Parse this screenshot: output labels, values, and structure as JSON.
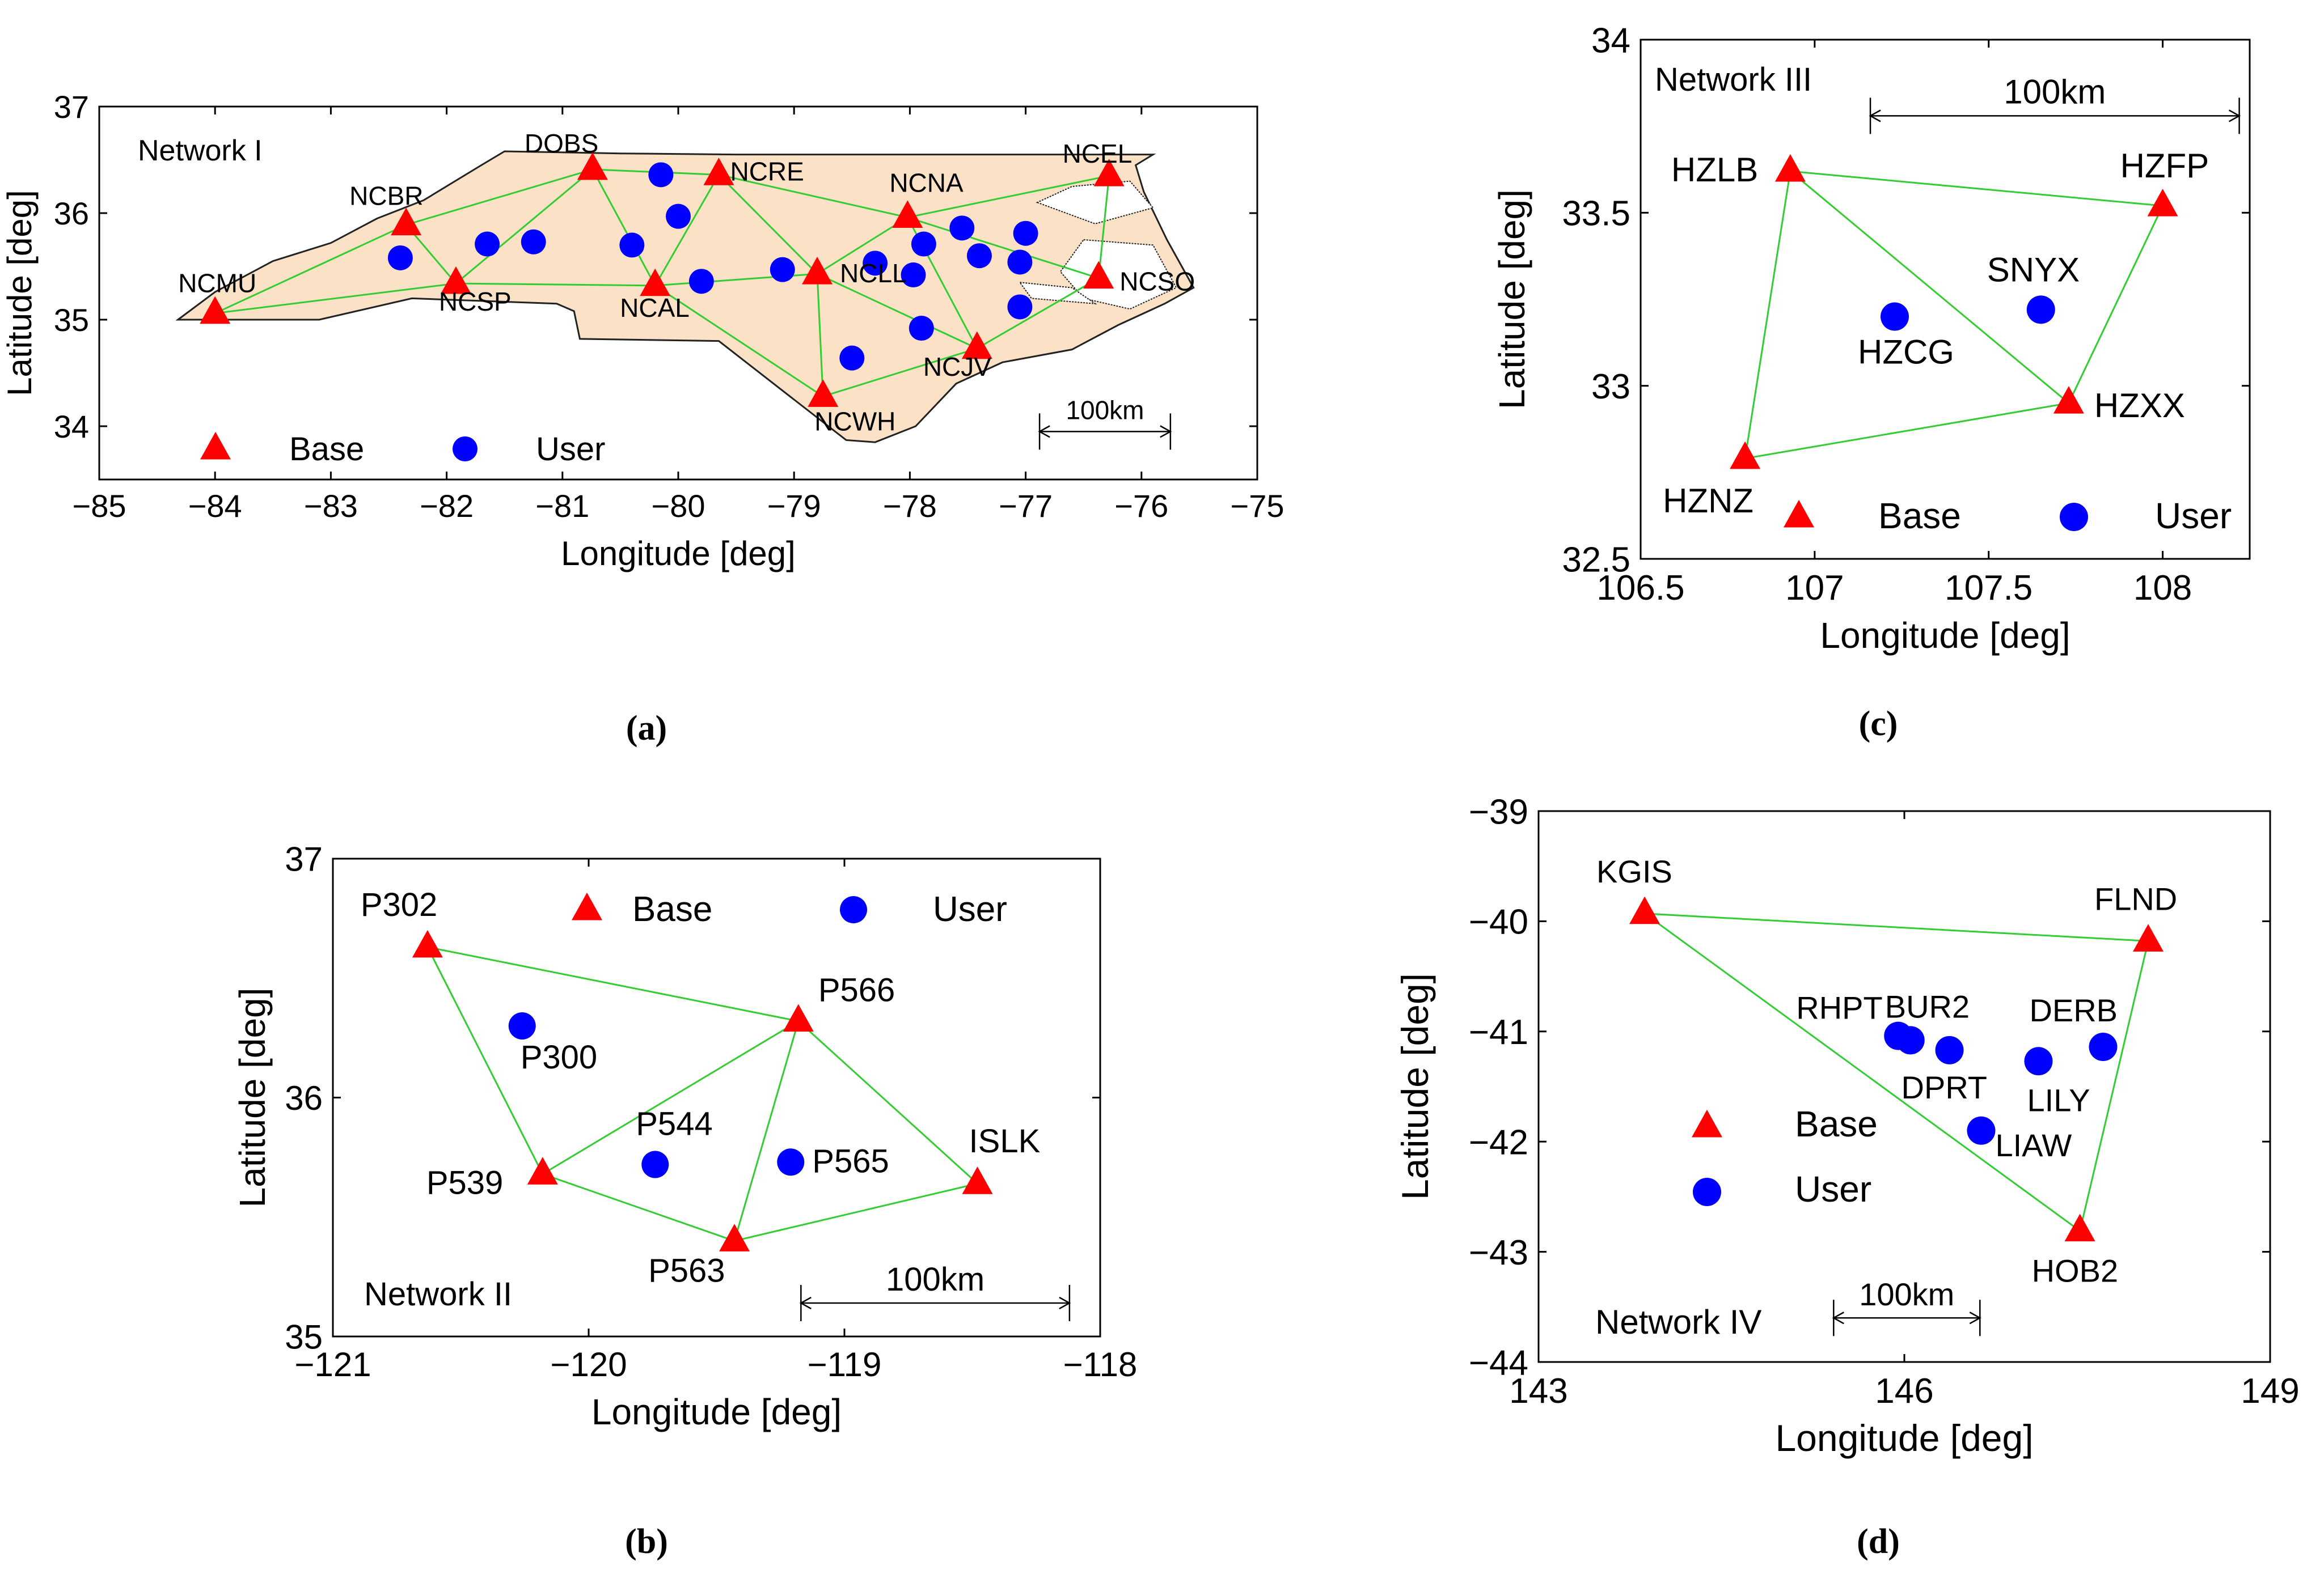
{
  "colors": {
    "base": "#ff0000",
    "user": "#0000ff",
    "link": "#33cc33",
    "land": "#fbe2c6",
    "coast": "#222222"
  },
  "chart_data": [
    {
      "id": "a",
      "type": "scatter",
      "caption": "(a)",
      "network_label": "Network I",
      "xlabel": "Longitude [deg]",
      "ylabel": "Latitude [deg]",
      "xlim": [
        -85,
        -75
      ],
      "ylim": [
        33.5,
        37
      ],
      "xticks": [
        -85,
        -84,
        -83,
        -82,
        -81,
        -80,
        -79,
        -78,
        -77,
        -76,
        -75
      ],
      "yticks": [
        34,
        35,
        36,
        37
      ],
      "legend": [
        {
          "marker": "triangle",
          "label": "Base"
        },
        {
          "marker": "circle",
          "label": "User"
        }
      ],
      "scalebar": {
        "label": "100km",
        "x_from": -76.88,
        "x_to": -75.75,
        "y": 33.95
      },
      "base": [
        {
          "name": "NCMU",
          "lon": -84.0,
          "lat": 35.06
        },
        {
          "name": "NCBR",
          "lon": -82.35,
          "lat": 35.89
        },
        {
          "name": "NCSP",
          "lon": -81.92,
          "lat": 35.34
        },
        {
          "name": "DOBS",
          "lon": -80.74,
          "lat": 36.41
        },
        {
          "name": "NCAL",
          "lon": -80.2,
          "lat": 35.32
        },
        {
          "name": "NCRE",
          "lon": -79.65,
          "lat": 36.36
        },
        {
          "name": "NCLL",
          "lon": -78.8,
          "lat": 35.43
        },
        {
          "name": "NCNA",
          "lon": -78.02,
          "lat": 35.96
        },
        {
          "name": "NCEL",
          "lon": -76.28,
          "lat": 36.35
        },
        {
          "name": "NCSO",
          "lon": -76.37,
          "lat": 35.39
        },
        {
          "name": "NCJV",
          "lon": -77.42,
          "lat": 34.73
        },
        {
          "name": "NCWH",
          "lon": -78.75,
          "lat": 34.28
        }
      ],
      "links": [
        [
          "NCMU",
          "NCBR"
        ],
        [
          "NCMU",
          "NCSP"
        ],
        [
          "NCBR",
          "NCSP"
        ],
        [
          "NCBR",
          "DOBS"
        ],
        [
          "NCSP",
          "DOBS"
        ],
        [
          "NCSP",
          "NCAL"
        ],
        [
          "DOBS",
          "NCAL"
        ],
        [
          "DOBS",
          "NCRE"
        ],
        [
          "NCAL",
          "NCRE"
        ],
        [
          "NCAL",
          "NCLL"
        ],
        [
          "NCAL",
          "NCWH"
        ],
        [
          "NCRE",
          "NCLL"
        ],
        [
          "NCRE",
          "NCNA"
        ],
        [
          "NCLL",
          "NCNA"
        ],
        [
          "NCLL",
          "NCWH"
        ],
        [
          "NCNA",
          "NCEL"
        ],
        [
          "NCNA",
          "NCSO"
        ],
        [
          "NCEL",
          "NCSO"
        ],
        [
          "NCSO",
          "NCJV"
        ],
        [
          "NCLL",
          "NCJV"
        ],
        [
          "NCWH",
          "NCJV"
        ],
        [
          "NCNA",
          "NCJV"
        ]
      ],
      "users": [
        {
          "lon": -82.4,
          "lat": 35.58
        },
        {
          "lon": -81.65,
          "lat": 35.71
        },
        {
          "lon": -81.25,
          "lat": 35.73
        },
        {
          "lon": -80.4,
          "lat": 35.7
        },
        {
          "lon": -80.0,
          "lat": 35.97
        },
        {
          "lon": -80.15,
          "lat": 36.36
        },
        {
          "lon": -79.8,
          "lat": 35.36
        },
        {
          "lon": -79.1,
          "lat": 35.47
        },
        {
          "lon": -78.3,
          "lat": 35.53
        },
        {
          "lon": -77.97,
          "lat": 35.42
        },
        {
          "lon": -77.88,
          "lat": 35.71
        },
        {
          "lon": -77.55,
          "lat": 35.86
        },
        {
          "lon": -77.4,
          "lat": 35.6
        },
        {
          "lon": -77.0,
          "lat": 35.81
        },
        {
          "lon": -77.05,
          "lat": 35.54
        },
        {
          "lon": -77.05,
          "lat": 35.12
        },
        {
          "lon": -77.9,
          "lat": 34.92
        },
        {
          "lon": -78.5,
          "lat": 34.64
        }
      ]
    },
    {
      "id": "b",
      "type": "scatter",
      "caption": "(b)",
      "network_label": "Network II",
      "xlabel": "Longitude [deg]",
      "ylabel": "Latitude [deg]",
      "xlim": [
        -121,
        -118
      ],
      "ylim": [
        35,
        37
      ],
      "xticks": [
        -121,
        -120,
        -119,
        -118
      ],
      "yticks": [
        35,
        36,
        37
      ],
      "legend": [
        {
          "marker": "triangle",
          "label": "Base"
        },
        {
          "marker": "circle",
          "label": "User"
        }
      ],
      "scalebar": {
        "label": "100km",
        "x_from": -119.17,
        "x_to": -118.12,
        "y": 35.14
      },
      "base": [
        {
          "name": "P302",
          "lon": -120.63,
          "lat": 36.63
        },
        {
          "name": "P566",
          "lon": -119.18,
          "lat": 36.32
        },
        {
          "name": "P539",
          "lon": -120.18,
          "lat": 35.68
        },
        {
          "name": "ISLK",
          "lon": -118.48,
          "lat": 35.64
        },
        {
          "name": "P563",
          "lon": -119.43,
          "lat": 35.4
        }
      ],
      "links": [
        [
          "P302",
          "P566"
        ],
        [
          "P302",
          "P539"
        ],
        [
          "P539",
          "P566"
        ],
        [
          "P539",
          "P563"
        ],
        [
          "P563",
          "P566"
        ],
        [
          "P566",
          "ISLK"
        ],
        [
          "P563",
          "ISLK"
        ]
      ],
      "users": [
        {
          "name": "P300",
          "lon": -120.26,
          "lat": 36.3
        },
        {
          "name": "P544",
          "lon": -119.74,
          "lat": 35.72
        },
        {
          "name": "P565",
          "lon": -119.21,
          "lat": 35.73
        }
      ]
    },
    {
      "id": "c",
      "type": "scatter",
      "caption": "(c)",
      "network_label": "Network III",
      "xlabel": "Longitude [deg]",
      "ylabel": "Latitude [deg]",
      "xlim": [
        106.5,
        108.25
      ],
      "ylim": [
        32.5,
        34
      ],
      "xticks": [
        106.5,
        107,
        107.5,
        108
      ],
      "yticks": [
        32.5,
        33,
        33.5,
        34
      ],
      "legend": [
        {
          "marker": "triangle",
          "label": "Base"
        },
        {
          "marker": "circle",
          "label": "User"
        }
      ],
      "scalebar": {
        "label": "100km",
        "x_from": 107.16,
        "x_to": 108.22,
        "y": 33.78
      },
      "base": [
        {
          "name": "HZLB",
          "lon": 106.93,
          "lat": 33.62
        },
        {
          "name": "HZFP",
          "lon": 108.0,
          "lat": 33.52
        },
        {
          "name": "HZXX",
          "lon": 107.73,
          "lat": 32.95
        },
        {
          "name": "HZNZ",
          "lon": 106.8,
          "lat": 32.79
        }
      ],
      "links": [
        [
          "HZLB",
          "HZFP"
        ],
        [
          "HZLB",
          "HZXX"
        ],
        [
          "HZLB",
          "HZNZ"
        ],
        [
          "HZFP",
          "HZXX"
        ],
        [
          "HZNZ",
          "HZXX"
        ]
      ],
      "users": [
        {
          "name": "HZCG",
          "lon": 107.23,
          "lat": 33.2
        },
        {
          "name": "SNYX",
          "lon": 107.65,
          "lat": 33.22
        }
      ]
    },
    {
      "id": "d",
      "type": "scatter",
      "caption": "(d)",
      "network_label": "Network IV",
      "xlabel": "Longitude [deg]",
      "ylabel": "Latitude [deg]",
      "xlim": [
        143,
        149
      ],
      "ylim": [
        -44,
        -39
      ],
      "xticks": [
        143,
        146,
        149
      ],
      "yticks": [
        -39,
        -40,
        -41,
        -42,
        -43,
        -44
      ],
      "legend": [
        {
          "marker": "triangle",
          "label": "Base"
        },
        {
          "marker": "circle",
          "label": "User"
        }
      ],
      "scalebar": {
        "label": "100km",
        "x_from": 145.42,
        "x_to": 146.62,
        "y": -43.6
      },
      "base": [
        {
          "name": "KGIS",
          "lon": 143.87,
          "lat": -39.93
        },
        {
          "name": "FLND",
          "lon": 148.0,
          "lat": -40.18
        },
        {
          "name": "HOB2",
          "lon": 147.44,
          "lat": -42.81
        }
      ],
      "links": [
        [
          "KGIS",
          "FLND"
        ],
        [
          "KGIS",
          "HOB2"
        ],
        [
          "FLND",
          "HOB2"
        ]
      ],
      "users": [
        {
          "name": "RHPT",
          "lon": 145.95,
          "lat": -41.04
        },
        {
          "name": "BUR2",
          "lon": 146.05,
          "lat": -41.08
        },
        {
          "name": "DPRT",
          "lon": 146.37,
          "lat": -41.17
        },
        {
          "name": "LILY",
          "lon": 147.1,
          "lat": -41.27
        },
        {
          "name": "DERB",
          "lon": 147.63,
          "lat": -41.14
        },
        {
          "name": "LIAW",
          "lon": 146.63,
          "lat": -41.9
        }
      ]
    }
  ]
}
